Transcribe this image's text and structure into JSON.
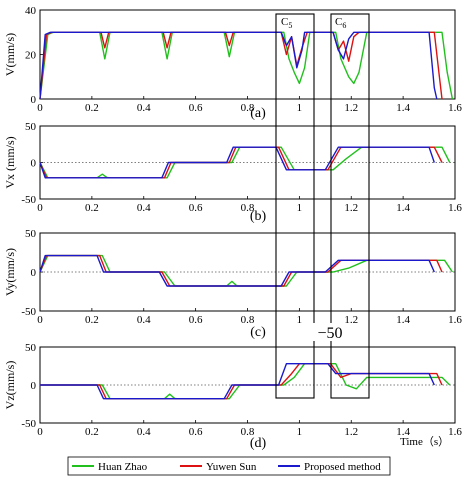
{
  "figure": {
    "colors": {
      "huan": "#22c01e",
      "yuwen": "#dd1111",
      "proposed": "#1a1acc"
    },
    "legend": [
      "Huan Zhao",
      "Yuwen Sun",
      "Proposed method"
    ],
    "x_label": "Time（s）",
    "callouts": {
      "c5": "C",
      "c5_sub": "5",
      "c6": "C",
      "c6_sub": "6",
      "overlay": "−50"
    }
  },
  "chart_data": [
    {
      "type": "line",
      "panel_label": "(a)",
      "ylabel": "V(mm/s)",
      "xlim": [
        0,
        1.6
      ],
      "ylim": [
        0,
        40
      ],
      "xticks": [
        "0",
        "0.2",
        "0.4",
        "0.6",
        "0.8",
        "1",
        "1.2",
        "1.4",
        "1.6"
      ],
      "yticks": [
        "0",
        "20",
        "40"
      ],
      "series": [
        {
          "name": "Huan Zhao",
          "points": [
            [
              0,
              0
            ],
            [
              0.03,
              29
            ],
            [
              0.05,
              30
            ],
            [
              0.23,
              30
            ],
            [
              0.25,
              18
            ],
            [
              0.27,
              30
            ],
            [
              0.47,
              30
            ],
            [
              0.49,
              18
            ],
            [
              0.51,
              30
            ],
            [
              0.71,
              30
            ],
            [
              0.73,
              19
            ],
            [
              0.75,
              30
            ],
            [
              0.94,
              30
            ],
            [
              0.96,
              18
            ],
            [
              0.98,
              12
            ],
            [
              1.0,
              7
            ],
            [
              1.02,
              14
            ],
            [
              1.04,
              30
            ],
            [
              1.14,
              30
            ],
            [
              1.16,
              18
            ],
            [
              1.19,
              10
            ],
            [
              1.21,
              7
            ],
            [
              1.23,
              12
            ],
            [
              1.26,
              30
            ],
            [
              1.55,
              30
            ],
            [
              1.57,
              12
            ],
            [
              1.59,
              0
            ]
          ]
        },
        {
          "name": "Yuwen Sun",
          "points": [
            [
              0,
              0
            ],
            [
              0.025,
              29
            ],
            [
              0.045,
              30
            ],
            [
              0.235,
              30
            ],
            [
              0.25,
              23
            ],
            [
              0.265,
              30
            ],
            [
              0.475,
              30
            ],
            [
              0.49,
              23
            ],
            [
              0.505,
              30
            ],
            [
              0.715,
              30
            ],
            [
              0.73,
              24
            ],
            [
              0.745,
              30
            ],
            [
              0.93,
              30
            ],
            [
              0.95,
              20
            ],
            [
              0.97,
              28
            ],
            [
              0.99,
              15
            ],
            [
              1.01,
              23
            ],
            [
              1.03,
              30
            ],
            [
              1.13,
              30
            ],
            [
              1.15,
              22
            ],
            [
              1.17,
              26
            ],
            [
              1.19,
              17
            ],
            [
              1.21,
              28
            ],
            [
              1.23,
              30
            ],
            [
              1.52,
              30
            ],
            [
              1.54,
              10
            ],
            [
              1.55,
              0
            ]
          ]
        },
        {
          "name": "Proposed method",
          "points": [
            [
              0,
              0
            ],
            [
              0.02,
              29
            ],
            [
              0.04,
              30
            ],
            [
              0.93,
              30
            ],
            [
              0.95,
              24
            ],
            [
              0.97,
              28
            ],
            [
              0.99,
              14
            ],
            [
              1.01,
              22
            ],
            [
              1.02,
              30
            ],
            [
              1.13,
              30
            ],
            [
              1.15,
              22
            ],
            [
              1.17,
              18
            ],
            [
              1.19,
              27
            ],
            [
              1.21,
              30
            ],
            [
              1.5,
              30
            ],
            [
              1.52,
              5
            ],
            [
              1.53,
              0
            ]
          ]
        }
      ]
    },
    {
      "type": "line",
      "panel_label": "(b)",
      "ylabel": "Vx (mm/s)",
      "xlim": [
        0,
        1.6
      ],
      "ylim": [
        -50,
        50
      ],
      "xticks": [
        "0",
        "0.2",
        "0.4",
        "0.6",
        "0.8",
        "1",
        "1.2",
        "1.4",
        "1.6"
      ],
      "yticks": [
        "-50",
        "0",
        "50"
      ],
      "series": [
        {
          "name": "Huan Zhao",
          "points": [
            [
              0,
              0
            ],
            [
              0.03,
              -21
            ],
            [
              0.22,
              -21
            ],
            [
              0.24,
              -16
            ],
            [
              0.26,
              -21
            ],
            [
              0.49,
              -21
            ],
            [
              0.52,
              0
            ],
            [
              0.74,
              0
            ],
            [
              0.77,
              21
            ],
            [
              0.93,
              21
            ],
            [
              0.98,
              -10
            ],
            [
              1.13,
              -10
            ],
            [
              1.18,
              5
            ],
            [
              1.24,
              21
            ],
            [
              1.55,
              21
            ],
            [
              1.58,
              0
            ]
          ]
        },
        {
          "name": "Yuwen Sun",
          "points": [
            [
              0,
              0
            ],
            [
              0.025,
              -21
            ],
            [
              0.48,
              -21
            ],
            [
              0.505,
              0
            ],
            [
              0.73,
              0
            ],
            [
              0.755,
              21
            ],
            [
              0.92,
              21
            ],
            [
              0.96,
              -10
            ],
            [
              1.11,
              -10
            ],
            [
              1.16,
              21
            ],
            [
              1.52,
              21
            ],
            [
              1.55,
              0
            ]
          ]
        },
        {
          "name": "Proposed method",
          "points": [
            [
              0,
              0
            ],
            [
              0.02,
              -21
            ],
            [
              0.47,
              -21
            ],
            [
              0.495,
              0
            ],
            [
              0.72,
              0
            ],
            [
              0.745,
              21
            ],
            [
              0.91,
              21
            ],
            [
              0.95,
              -10
            ],
            [
              1.1,
              -10
            ],
            [
              1.15,
              21
            ],
            [
              1.5,
              21
            ],
            [
              1.52,
              0
            ]
          ]
        }
      ]
    },
    {
      "type": "line",
      "panel_label": "(c)",
      "ylabel": "Vy(mm/s)",
      "xlim": [
        0,
        1.6
      ],
      "ylim": [
        -50,
        50
      ],
      "xticks": [
        "0",
        "0.2",
        "0.4",
        "0.6",
        "0.8",
        "1",
        "1.2",
        "1.4",
        "1.6"
      ],
      "yticks": [
        "-50",
        "0",
        "50"
      ],
      "series": [
        {
          "name": "Huan Zhao",
          "points": [
            [
              0,
              0
            ],
            [
              0.03,
              21
            ],
            [
              0.24,
              21
            ],
            [
              0.27,
              0
            ],
            [
              0.48,
              0
            ],
            [
              0.52,
              -18
            ],
            [
              0.72,
              -18
            ],
            [
              0.74,
              -12
            ],
            [
              0.76,
              -18
            ],
            [
              0.95,
              -18
            ],
            [
              0.99,
              0
            ],
            [
              1.13,
              0
            ],
            [
              1.19,
              5
            ],
            [
              1.26,
              15
            ],
            [
              1.56,
              15
            ],
            [
              1.59,
              0
            ]
          ]
        },
        {
          "name": "Yuwen Sun",
          "points": [
            [
              0,
              0
            ],
            [
              0.025,
              21
            ],
            [
              0.23,
              21
            ],
            [
              0.255,
              0
            ],
            [
              0.47,
              0
            ],
            [
              0.5,
              -18
            ],
            [
              0.94,
              -18
            ],
            [
              0.97,
              0
            ],
            [
              1.11,
              0
            ],
            [
              1.16,
              15
            ],
            [
              1.53,
              15
            ],
            [
              1.55,
              0
            ]
          ]
        },
        {
          "name": "Proposed method",
          "points": [
            [
              0,
              0
            ],
            [
              0.02,
              21
            ],
            [
              0.22,
              21
            ],
            [
              0.245,
              0
            ],
            [
              0.46,
              0
            ],
            [
              0.49,
              -18
            ],
            [
              0.93,
              -18
            ],
            [
              0.96,
              0
            ],
            [
              1.1,
              0
            ],
            [
              1.15,
              15
            ],
            [
              1.5,
              15
            ],
            [
              1.52,
              0
            ]
          ]
        }
      ]
    },
    {
      "type": "line",
      "panel_label": "(d)",
      "ylabel": "Vz(mm/s)",
      "xlim": [
        0,
        1.6
      ],
      "ylim": [
        -50,
        50
      ],
      "xticks": [
        "0",
        "0.2",
        "0.4",
        "0.6",
        "0.8",
        "1",
        "1.2",
        "1.4",
        "1.6"
      ],
      "yticks": [
        "-50",
        "0",
        "50"
      ],
      "series": [
        {
          "name": "Huan Zhao",
          "points": [
            [
              0,
              0
            ],
            [
              0.24,
              0
            ],
            [
              0.27,
              -18
            ],
            [
              0.48,
              -18
            ],
            [
              0.5,
              -12
            ],
            [
              0.52,
              -18
            ],
            [
              0.73,
              -18
            ],
            [
              0.77,
              0
            ],
            [
              0.94,
              0
            ],
            [
              0.98,
              10
            ],
            [
              1.02,
              28
            ],
            [
              1.14,
              28
            ],
            [
              1.18,
              0
            ],
            [
              1.22,
              -5
            ],
            [
              1.26,
              10
            ],
            [
              1.55,
              10
            ],
            [
              1.58,
              0
            ]
          ]
        },
        {
          "name": "Yuwen Sun",
          "points": [
            [
              0,
              0
            ],
            [
              0.23,
              0
            ],
            [
              0.255,
              -18
            ],
            [
              0.72,
              -18
            ],
            [
              0.75,
              0
            ],
            [
              0.93,
              0
            ],
            [
              0.97,
              15
            ],
            [
              1.0,
              28
            ],
            [
              1.12,
              28
            ],
            [
              1.16,
              10
            ],
            [
              1.2,
              15
            ],
            [
              1.53,
              15
            ],
            [
              1.55,
              0
            ]
          ]
        },
        {
          "name": "Proposed method",
          "points": [
            [
              0,
              0
            ],
            [
              0.22,
              0
            ],
            [
              0.245,
              -18
            ],
            [
              0.71,
              -18
            ],
            [
              0.74,
              0
            ],
            [
              0.92,
              0
            ],
            [
              0.95,
              28
            ],
            [
              1.11,
              28
            ],
            [
              1.14,
              15
            ],
            [
              1.5,
              15
            ],
            [
              1.52,
              0
            ]
          ]
        }
      ]
    }
  ]
}
